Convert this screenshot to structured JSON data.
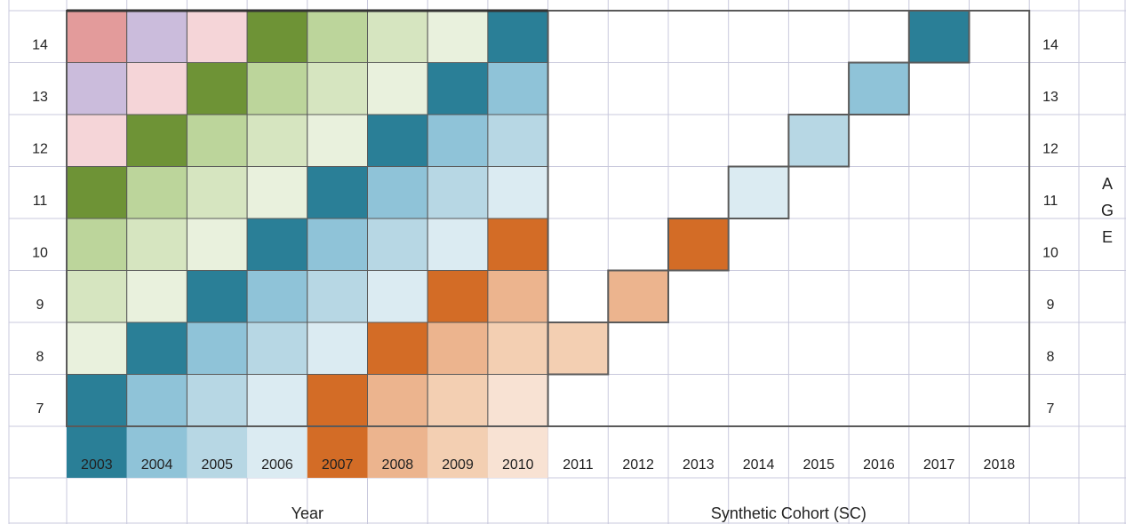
{
  "ages": [
    "14",
    "13",
    "12",
    "11",
    "10",
    "9",
    "8",
    "7"
  ],
  "years": [
    "2003",
    "2004",
    "2005",
    "2006",
    "2007",
    "2008",
    "2009",
    "2010",
    "2011",
    "2012",
    "2013",
    "2014",
    "2015",
    "2016",
    "2017",
    "2018"
  ],
  "age_axis_letters": [
    "A",
    "G",
    "E"
  ],
  "group_labels": {
    "observed": "Year",
    "synthetic": "Synthetic Cohort (SC)"
  },
  "palette": {
    "birth_2003": "#e39b9b",
    "birth_2002": "#cbbcdc",
    "birth_2001": "#f5d5d8",
    "green_1": "#6e9336",
    "green_2": "#bcd59b",
    "green_3": "#d6e5c0",
    "green_4": "#e9f1dd",
    "teal_1": "#2a7f97",
    "teal_2": "#8fc3d8",
    "teal_3": "#b7d7e4",
    "teal_4": "#dbebf2",
    "orange_1": "#d36c26",
    "orange_2": "#ecb48e",
    "orange_3": "#f3cfb2",
    "orange_4": "#f8e2d3",
    "grid": "#c8c8dc",
    "border": "#5a5a5a"
  },
  "matrix": [
    [
      "birth_2003",
      "birth_2002",
      "birth_2001",
      "green_1",
      "green_2",
      "green_3",
      "green_4",
      "teal_1"
    ],
    [
      "birth_2002",
      "birth_2001",
      "green_1",
      "green_2",
      "green_3",
      "green_4",
      "teal_1",
      "teal_2"
    ],
    [
      "birth_2001",
      "green_1",
      "green_2",
      "green_3",
      "green_4",
      "teal_1",
      "teal_2",
      "teal_3"
    ],
    [
      "green_1",
      "green_2",
      "green_3",
      "green_4",
      "teal_1",
      "teal_2",
      "teal_3",
      "teal_4"
    ],
    [
      "green_2",
      "green_3",
      "green_4",
      "teal_1",
      "teal_2",
      "teal_3",
      "teal_4",
      "orange_1"
    ],
    [
      "green_3",
      "green_4",
      "teal_1",
      "teal_2",
      "teal_3",
      "teal_4",
      "orange_1",
      "orange_2"
    ],
    [
      "green_4",
      "teal_1",
      "teal_2",
      "teal_3",
      "teal_4",
      "orange_1",
      "orange_2",
      "orange_3"
    ],
    [
      "teal_1",
      "teal_2",
      "teal_3",
      "teal_4",
      "orange_1",
      "orange_2",
      "orange_3",
      "orange_4"
    ]
  ],
  "year_header_colors": [
    "teal_1",
    "teal_2",
    "teal_3",
    "teal_4",
    "orange_1",
    "orange_2",
    "orange_3",
    "orange_4"
  ],
  "synthetic_cohort": [
    {
      "year": "2011",
      "age": "8",
      "color": "orange_3"
    },
    {
      "year": "2012",
      "age": "9",
      "color": "orange_2"
    },
    {
      "year": "2013",
      "age": "10",
      "color": "orange_1"
    },
    {
      "year": "2014",
      "age": "11",
      "color": "teal_4"
    },
    {
      "year": "2015",
      "age": "12",
      "color": "teal_3"
    },
    {
      "year": "2016",
      "age": "13",
      "color": "teal_2"
    },
    {
      "year": "2017",
      "age": "14",
      "color": "teal_1"
    }
  ]
}
